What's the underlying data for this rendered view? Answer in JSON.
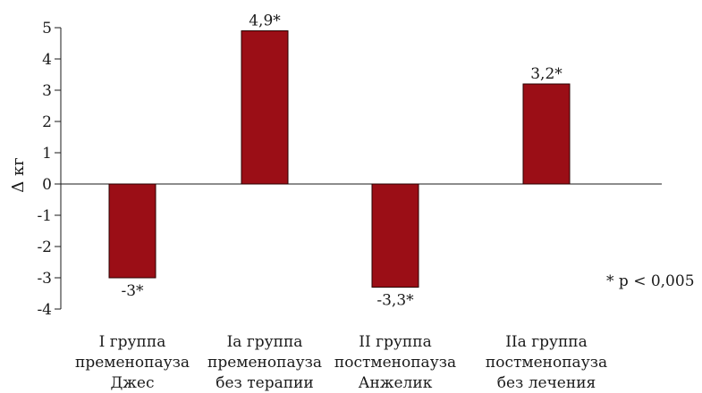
{
  "chart_data": {
    "type": "bar",
    "ylabel": "Δ кг",
    "ylim": [
      -4,
      5
    ],
    "yticks": [
      5,
      4,
      3,
      2,
      1,
      0,
      -1,
      -2,
      -3,
      -4
    ],
    "grid": false,
    "bar_color": "#9b0e16",
    "categories": [
      [
        "I группа",
        "пременопауза",
        "Джес"
      ],
      [
        "Ia группа",
        "пременопауза",
        "без терапии"
      ],
      [
        "II группа",
        "постменопауза",
        "Анжелик"
      ],
      [
        "IIa группа",
        "постменопауза",
        "без лечения"
      ]
    ],
    "values": [
      -3,
      4.9,
      -3.3,
      3.2
    ],
    "data_labels": [
      "-3*",
      "4,9*",
      "-3,3*",
      "3,2*"
    ],
    "annotation": "* p < 0,005"
  }
}
